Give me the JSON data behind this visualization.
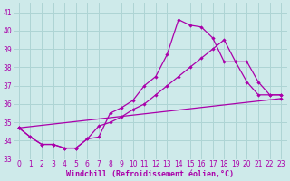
{
  "xlabel": "Windchill (Refroidissement éolien,°C)",
  "bg_color": "#ceeaea",
  "line_color": "#aa00aa",
  "grid_color": "#aed4d4",
  "xlim": [
    -0.5,
    23.5
  ],
  "ylim": [
    33.0,
    41.5
  ],
  "yticks": [
    33,
    34,
    35,
    36,
    37,
    38,
    39,
    40,
    41
  ],
  "xticks": [
    0,
    1,
    2,
    3,
    4,
    5,
    6,
    7,
    8,
    9,
    10,
    11,
    12,
    13,
    14,
    15,
    16,
    17,
    18,
    19,
    20,
    21,
    22,
    23
  ],
  "series1_x": [
    0,
    1,
    2,
    3,
    4,
    5,
    6,
    7,
    8,
    9,
    10,
    11,
    12,
    13,
    14,
    15,
    16,
    17,
    18,
    19,
    20,
    21,
    22,
    23
  ],
  "series1_y": [
    34.7,
    34.2,
    33.8,
    33.8,
    33.6,
    33.6,
    34.1,
    34.2,
    35.5,
    35.8,
    36.2,
    37.0,
    37.5,
    38.7,
    40.6,
    40.3,
    40.2,
    39.6,
    38.3,
    38.3,
    37.2,
    36.5,
    36.5,
    36.5
  ],
  "series2_x": [
    0,
    1,
    2,
    3,
    4,
    5,
    6,
    7,
    8,
    9,
    10,
    11,
    12,
    13,
    14,
    15,
    16,
    17,
    18,
    19,
    20,
    21,
    22,
    23
  ],
  "series2_y": [
    34.7,
    34.2,
    33.8,
    33.8,
    33.6,
    33.6,
    34.1,
    34.8,
    35.0,
    35.3,
    35.7,
    36.0,
    36.5,
    37.0,
    37.5,
    38.0,
    38.5,
    39.0,
    39.5,
    38.3,
    38.3,
    37.2,
    36.5,
    36.5
  ],
  "series3_x": [
    0,
    23
  ],
  "series3_y": [
    34.7,
    36.3
  ]
}
